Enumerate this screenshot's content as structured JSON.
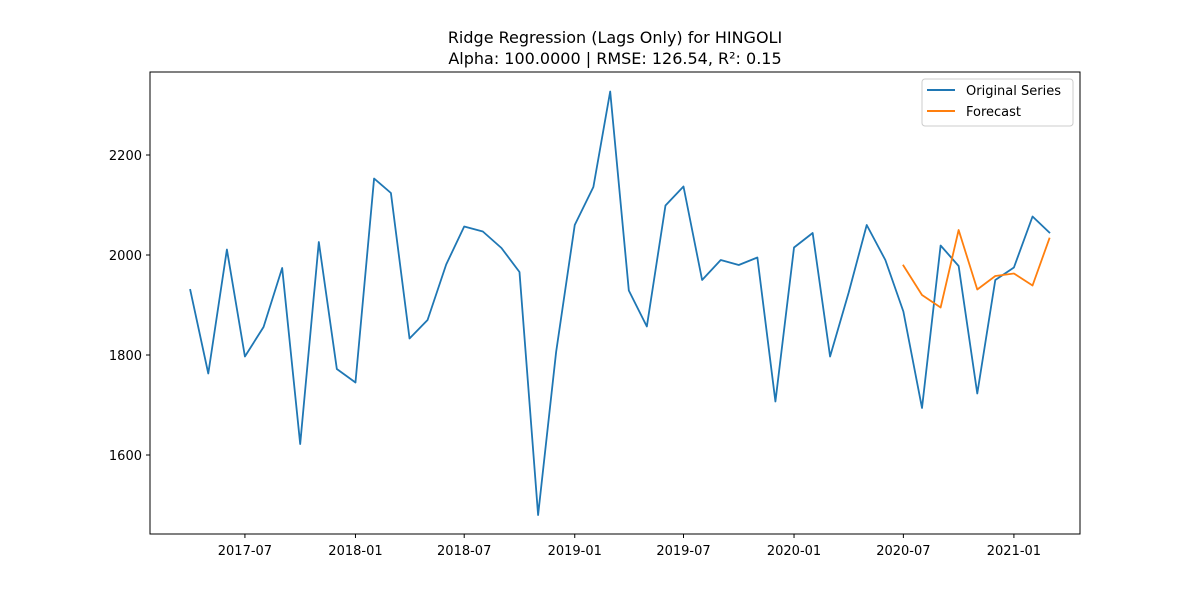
{
  "chart_data": {
    "type": "line",
    "title": "Ridge Regression (Lags Only) for HINGOLI",
    "subtitle": "Alpha: 100.0000 | RMSE: 126.54, R²: 0.15",
    "xlabel": "",
    "ylabel": "",
    "xlim": [
      "2017-01-24",
      "2021-04-21"
    ],
    "ylim": [
      1442,
      2366
    ],
    "x_ticks": [
      "2017-07",
      "2018-01",
      "2018-07",
      "2019-01",
      "2019-07",
      "2020-01",
      "2020-07",
      "2021-01"
    ],
    "y_ticks": [
      1600,
      1800,
      2000,
      2200
    ],
    "grid": false,
    "legend_position": "top-right",
    "series": [
      {
        "name": "Original Series",
        "color": "#1f77b4",
        "x": [
          "2017-04-01",
          "2017-05-01",
          "2017-06-01",
          "2017-07-01",
          "2017-08-01",
          "2017-09-01",
          "2017-10-01",
          "2017-11-01",
          "2017-12-01",
          "2018-01-01",
          "2018-02-01",
          "2018-03-01",
          "2018-04-01",
          "2018-05-01",
          "2018-06-01",
          "2018-07-01",
          "2018-08-01",
          "2018-09-01",
          "2018-10-01",
          "2018-11-01",
          "2018-12-01",
          "2019-01-01",
          "2019-02-01",
          "2019-03-01",
          "2019-04-01",
          "2019-05-01",
          "2019-06-01",
          "2019-07-01",
          "2019-08-01",
          "2019-09-01",
          "2019-10-01",
          "2019-11-01",
          "2019-12-01",
          "2020-01-01",
          "2020-02-01",
          "2020-03-01",
          "2020-04-01",
          "2020-05-01",
          "2020-06-01",
          "2020-07-01",
          "2020-08-01",
          "2020-09-01",
          "2020-10-01",
          "2020-11-01",
          "2020-12-01",
          "2021-01-01",
          "2021-02-01",
          "2021-03-01"
        ],
        "values": [
          1930,
          1763,
          2011,
          1797,
          1856,
          1974,
          1622,
          2026,
          1772,
          1745,
          2153,
          2124,
          1833,
          1870,
          1981,
          2057,
          2047,
          2014,
          1966,
          1480,
          1806,
          2060,
          2136,
          2327,
          1929,
          1857,
          2099,
          2137,
          1950,
          1990,
          1980,
          1995,
          1707,
          2015,
          2044,
          1797,
          1925,
          2060,
          1990,
          1887,
          1694,
          2019,
          1978,
          1723,
          1950,
          1975,
          2077,
          2045
        ]
      },
      {
        "name": "Forecast",
        "color": "#ff7f0e",
        "x": [
          "2020-07-01",
          "2020-08-01",
          "2020-09-01",
          "2020-10-01",
          "2020-11-01",
          "2020-12-01",
          "2021-01-01",
          "2021-02-01",
          "2021-03-01"
        ],
        "values": [
          1979,
          1920,
          1895,
          2050,
          1931,
          1958,
          1963,
          1939,
          2033
        ]
      }
    ]
  }
}
